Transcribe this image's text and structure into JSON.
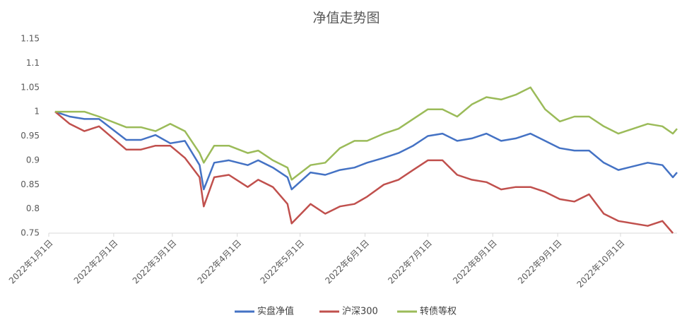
{
  "chart_data": {
    "type": "line",
    "title": "净值走势图",
    "x": [
      "2022-01-04",
      "2022-01-11",
      "2022-01-18",
      "2022-01-25",
      "2022-02-07",
      "2022-02-14",
      "2022-02-21",
      "2022-02-28",
      "2022-03-07",
      "2022-03-14",
      "2022-03-16",
      "2022-03-21",
      "2022-03-28",
      "2022-04-06",
      "2022-04-11",
      "2022-04-18",
      "2022-04-25",
      "2022-04-27",
      "2022-05-06",
      "2022-05-13",
      "2022-05-20",
      "2022-05-27",
      "2022-06-02",
      "2022-06-10",
      "2022-06-17",
      "2022-06-24",
      "2022-07-01",
      "2022-07-08",
      "2022-07-15",
      "2022-07-22",
      "2022-07-29",
      "2022-08-05",
      "2022-08-12",
      "2022-08-19",
      "2022-08-26",
      "2022-09-02",
      "2022-09-09",
      "2022-09-16",
      "2022-09-23",
      "2022-09-30",
      "2022-10-14",
      "2022-10-21",
      "2022-10-26",
      "2022-10-28"
    ],
    "series": [
      {
        "name": "实盘净值",
        "color": "#4472c4",
        "values": [
          1.0,
          0.99,
          0.985,
          0.985,
          0.942,
          0.942,
          0.952,
          0.935,
          0.94,
          0.89,
          0.84,
          0.895,
          0.9,
          0.89,
          0.9,
          0.885,
          0.865,
          0.84,
          0.875,
          0.87,
          0.88,
          0.885,
          0.895,
          0.905,
          0.915,
          0.93,
          0.95,
          0.955,
          0.94,
          0.945,
          0.955,
          0.94,
          0.945,
          0.955,
          0.94,
          0.925,
          0.92,
          0.92,
          0.895,
          0.88,
          0.895,
          0.89,
          0.865,
          0.875
        ]
      },
      {
        "name": "沪深300",
        "color": "#c0504d",
        "values": [
          1.0,
          0.975,
          0.96,
          0.97,
          0.922,
          0.922,
          0.93,
          0.93,
          0.905,
          0.865,
          0.805,
          0.865,
          0.87,
          0.845,
          0.86,
          0.845,
          0.81,
          0.77,
          0.81,
          0.79,
          0.805,
          0.81,
          0.825,
          0.85,
          0.86,
          0.88,
          0.9,
          0.9,
          0.87,
          0.86,
          0.855,
          0.84,
          0.845,
          0.845,
          0.835,
          0.82,
          0.815,
          0.83,
          0.79,
          0.775,
          0.765,
          0.775,
          0.75,
          null
        ]
      },
      {
        "name": "转债等权",
        "color": "#9bbb59",
        "values": [
          1.0,
          1.0,
          1.0,
          0.99,
          0.968,
          0.968,
          0.96,
          0.975,
          0.96,
          0.915,
          0.895,
          0.93,
          0.93,
          0.915,
          0.92,
          0.9,
          0.885,
          0.86,
          0.89,
          0.895,
          0.925,
          0.94,
          0.94,
          0.955,
          0.965,
          0.985,
          1.005,
          1.005,
          0.99,
          1.015,
          1.03,
          1.025,
          1.035,
          1.05,
          1.005,
          0.98,
          0.99,
          0.99,
          0.97,
          0.955,
          0.975,
          0.97,
          0.955,
          0.965
        ]
      }
    ],
    "xlim": [
      "2022-01-01",
      "2022-10-28"
    ],
    "xticks": [
      {
        "value": "2022-01-01",
        "label": "2022年1月1日"
      },
      {
        "value": "2022-02-01",
        "label": "2022年2月1日"
      },
      {
        "value": "2022-03-01",
        "label": "2022年3月1日"
      },
      {
        "value": "2022-04-01",
        "label": "2022年4月1日"
      },
      {
        "value": "2022-05-01",
        "label": "2022年5月1日"
      },
      {
        "value": "2022-06-01",
        "label": "2022年6月1日"
      },
      {
        "value": "2022-07-01",
        "label": "2022年7月1日"
      },
      {
        "value": "2022-08-01",
        "label": "2022年8月1日"
      },
      {
        "value": "2022-09-01",
        "label": "2022年9月1日"
      },
      {
        "value": "2022-10-01",
        "label": "2022年10月1日"
      }
    ],
    "ylim": [
      0.75,
      1.15
    ],
    "yticks": [
      0.75,
      0.8,
      0.85,
      0.9,
      0.95,
      1,
      1.05,
      1.1,
      1.15
    ],
    "grid": false,
    "legend": "bottom"
  }
}
